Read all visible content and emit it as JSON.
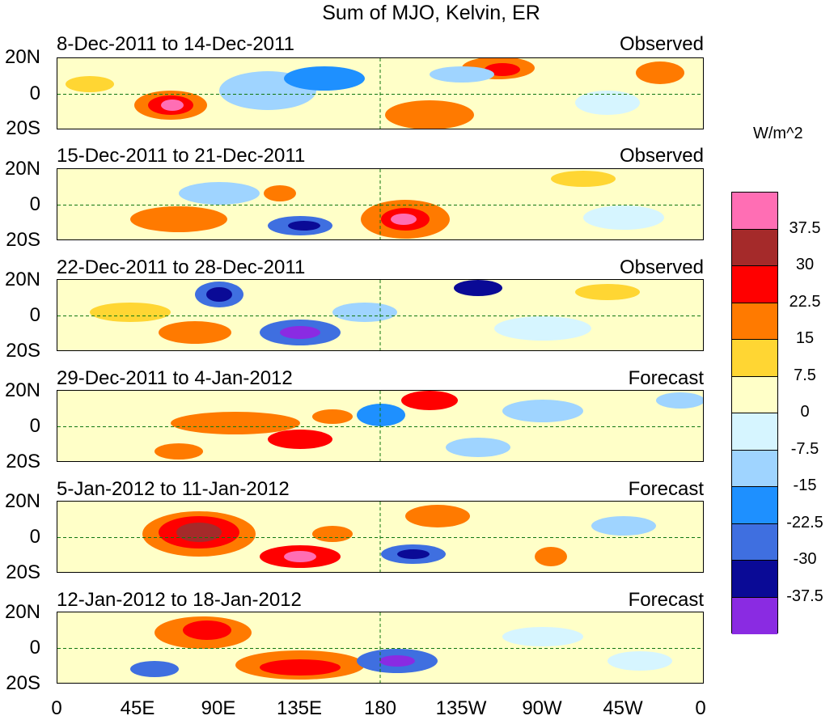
{
  "title": "Sum of MJO, Kelvin, ER",
  "panels": [
    {
      "period": "8-Dec-2011 to 14-Dec-2011",
      "status": "Observed"
    },
    {
      "period": "15-Dec-2011 to 21-Dec-2011",
      "status": "Observed"
    },
    {
      "period": "22-Dec-2011 to 28-Dec-2011",
      "status": "Observed"
    },
    {
      "period": "29-Dec-2011 to 4-Jan-2012",
      "status": "Forecast"
    },
    {
      "period": "5-Jan-2012 to 11-Jan-2012",
      "status": "Forecast"
    },
    {
      "period": "12-Jan-2012 to 18-Jan-2012",
      "status": "Forecast"
    }
  ],
  "lat_labels": [
    "20N",
    "0",
    "20S"
  ],
  "lon_labels": [
    "0",
    "45E",
    "90E",
    "135E",
    "180",
    "135W",
    "90W",
    "45W",
    "0"
  ],
  "colorbar": {
    "units": "W/m^2",
    "labels": [
      "37.5",
      "30",
      "22.5",
      "15",
      "7.5",
      "0",
      "-7.5",
      "-15",
      "-22.5",
      "-30",
      "-37.5"
    ],
    "colors": [
      "#ff6eb4",
      "#a52a2a",
      "#ff0000",
      "#ff7a00",
      "#ffd633",
      "#ffffc8",
      "#d6f5ff",
      "#9fd4ff",
      "#1e90ff",
      "#3f6fe0",
      "#0a0a96",
      "#8a2be2"
    ]
  },
  "map_colors": {
    "coast": "#117711",
    "equator": "#117711"
  }
}
